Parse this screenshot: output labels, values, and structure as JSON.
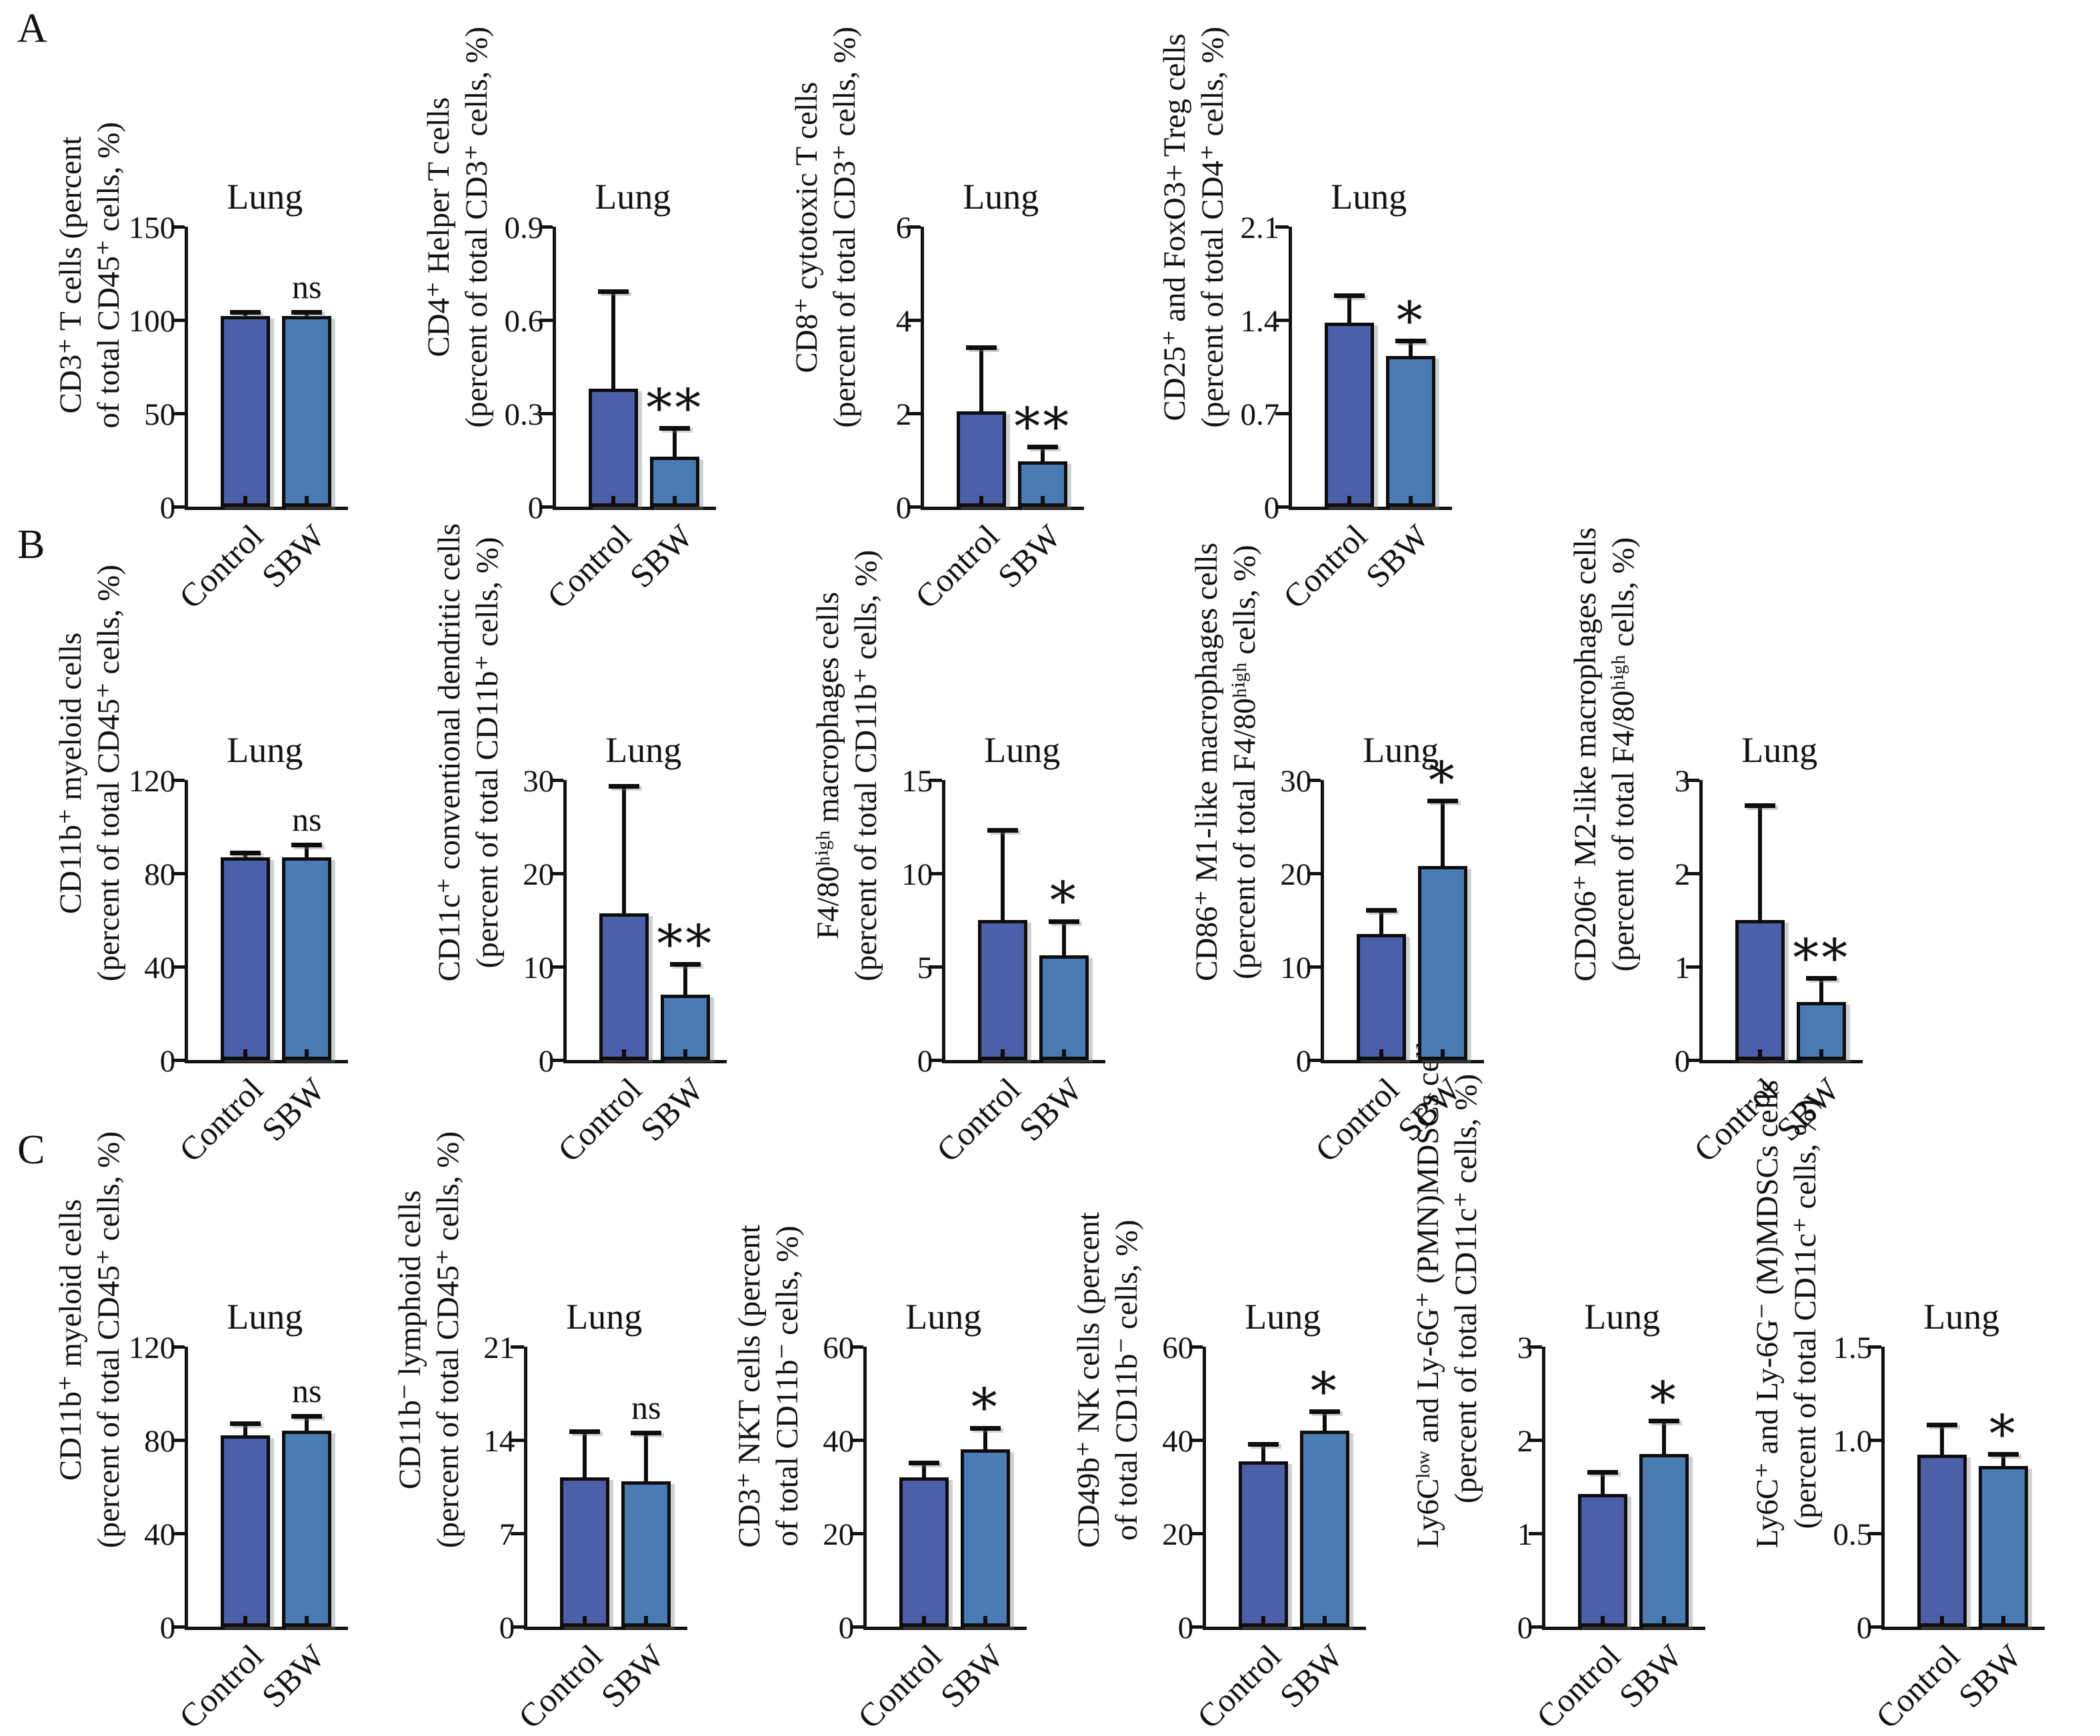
{
  "figure_background": "#ffffff",
  "colors": {
    "control_bar": "#4C5FA8",
    "sbw_bar": "#4A7BB2",
    "axis": "#111111"
  },
  "panels": [
    {
      "label": "A"
    },
    {
      "label": "B"
    },
    {
      "label": "C"
    }
  ],
  "chart_data": [
    {
      "panel": "A",
      "type": "bar",
      "title": "Lung",
      "ylabel_line1": "CD3⁺ T cells (percent",
      "ylabel_line2": "of total CD45⁺ cells, %)",
      "ymax": 150,
      "yticks": [
        0,
        50,
        100,
        150
      ],
      "ytick_labels": [
        "0",
        "50",
        "100",
        "150"
      ],
      "categories": [
        "Control",
        "SBW"
      ],
      "series": [
        {
          "name": "Control",
          "value": 102,
          "error": 2
        },
        {
          "name": "SBW",
          "value": 102,
          "error": 2
        }
      ],
      "significance": "ns",
      "significance_on": "SBW"
    },
    {
      "panel": "A",
      "type": "bar",
      "title": "Lung",
      "ylabel_line1": "CD4⁺ Helper T cells",
      "ylabel_line2": "(percent of total CD3⁺ cells, %)",
      "ymax": 0.9,
      "yticks": [
        0,
        0.3,
        0.6,
        0.9
      ],
      "ytick_labels": [
        "0",
        "0.3",
        "0.6",
        "0.9"
      ],
      "categories": [
        "Control",
        "SBW"
      ],
      "series": [
        {
          "name": "Control",
          "value": 0.38,
          "error": 0.31
        },
        {
          "name": "SBW",
          "value": 0.16,
          "error": 0.09
        }
      ],
      "significance": "**",
      "significance_on": "SBW"
    },
    {
      "panel": "A",
      "type": "bar",
      "title": "Lung",
      "ylabel_line1": "CD8⁺ cytotoxic T cells",
      "ylabel_line2": "(percent of total CD3⁺ cells, %)",
      "ymax": 6,
      "yticks": [
        0,
        2,
        4,
        6
      ],
      "ytick_labels": [
        "0",
        "2",
        "4",
        "6"
      ],
      "categories": [
        "Control",
        "SBW"
      ],
      "series": [
        {
          "name": "Control",
          "value": 2.05,
          "error": 1.35
        },
        {
          "name": "SBW",
          "value": 0.97,
          "error": 0.3
        }
      ],
      "significance": "**",
      "significance_on": "SBW"
    },
    {
      "panel": "A",
      "type": "bar",
      "title": "Lung",
      "ylabel_line1": "CD25⁺ and FoxO3+ Treg cells",
      "ylabel_line2": "(percent of total CD4⁺ cells, %)",
      "ymax": 2.1,
      "yticks": [
        0,
        0.7,
        1.4,
        2.1
      ],
      "ytick_labels": [
        "0",
        "0.7",
        "1.4",
        "2.1"
      ],
      "categories": [
        "Control",
        "SBW"
      ],
      "series": [
        {
          "name": "Control",
          "value": 1.38,
          "error": 0.2
        },
        {
          "name": "SBW",
          "value": 1.13,
          "error": 0.11
        }
      ],
      "significance": "*",
      "significance_on": "SBW"
    },
    {
      "panel": "B",
      "type": "bar",
      "title": "Lung",
      "ylabel_line1": "CD11b⁺ myeloid cells",
      "ylabel_line2": "(percent of total CD45⁺ cells, %)",
      "ymax": 120,
      "yticks": [
        0,
        40,
        80,
        120
      ],
      "ytick_labels": [
        "0",
        "40",
        "80",
        "120"
      ],
      "categories": [
        "Control",
        "SBW"
      ],
      "series": [
        {
          "name": "Control",
          "value": 87,
          "error": 1.5
        },
        {
          "name": "SBW",
          "value": 87,
          "error": 5
        }
      ],
      "significance": "ns",
      "significance_on": "SBW"
    },
    {
      "panel": "B",
      "type": "bar",
      "title": "Lung",
      "ylabel_line1": "CD11c⁺ conventional dendritic cells",
      "ylabel_line2": "(percent of total CD11b⁺ cells, %)",
      "ymax": 30,
      "yticks": [
        0,
        10,
        20,
        30
      ],
      "ytick_labels": [
        "0",
        "10",
        "20",
        "30"
      ],
      "categories": [
        "Control",
        "SBW"
      ],
      "series": [
        {
          "name": "Control",
          "value": 15.7,
          "error": 13.6
        },
        {
          "name": "SBW",
          "value": 7.0,
          "error": 3.2
        }
      ],
      "significance": "**",
      "significance_on": "SBW"
    },
    {
      "panel": "B",
      "type": "bar",
      "title": "Lung",
      "ylabel_line1": "F4/80ʰⁱᵍʰ macrophages cells",
      "ylabel_line2": "(percent of total CD11b⁺ cells, %)",
      "ymax": 15,
      "yticks": [
        0,
        5,
        10,
        15
      ],
      "ytick_labels": [
        "0",
        "5",
        "10",
        "15"
      ],
      "categories": [
        "Control",
        "SBW"
      ],
      "series": [
        {
          "name": "Control",
          "value": 7.5,
          "error": 4.8
        },
        {
          "name": "SBW",
          "value": 5.6,
          "error": 1.8
        }
      ],
      "significance": "*",
      "significance_on": "SBW"
    },
    {
      "panel": "B",
      "type": "bar",
      "title": "Lung",
      "ylabel_line1": "CD86⁺ M1-like macrophages cells",
      "ylabel_line2": "(percent of total F4/80ʰⁱᵍʰ cells, %)",
      "ymax": 30,
      "yticks": [
        0,
        10,
        20,
        30
      ],
      "ytick_labels": [
        "0",
        "10",
        "20",
        "30"
      ],
      "categories": [
        "Control",
        "SBW"
      ],
      "series": [
        {
          "name": "Control",
          "value": 13.5,
          "error": 2.5
        },
        {
          "name": "SBW",
          "value": 20.8,
          "error": 6.9
        }
      ],
      "significance": "*",
      "significance_on": "SBW"
    },
    {
      "panel": "B",
      "type": "bar",
      "title": "Lung",
      "ylabel_line1": "CD206⁺ M2-like macrophages cells",
      "ylabel_line2": "(percent of total F4/80ʰⁱᵍʰ cells, %)",
      "ymax": 3,
      "yticks": [
        0,
        1,
        2,
        3
      ],
      "ytick_labels": [
        "0",
        "1",
        "2",
        "3"
      ],
      "categories": [
        "Control",
        "SBW"
      ],
      "series": [
        {
          "name": "Control",
          "value": 1.5,
          "error": 1.22
        },
        {
          "name": "SBW",
          "value": 0.62,
          "error": 0.25
        }
      ],
      "significance": "**",
      "significance_on": "SBW"
    },
    {
      "panel": "C",
      "type": "bar",
      "title": "Lung",
      "ylabel_line1": "CD11b⁺ myeloid cells",
      "ylabel_line2": "(percent of total CD45⁺ cells, %)",
      "ymax": 120,
      "yticks": [
        0,
        40,
        80,
        120
      ],
      "ytick_labels": [
        "0",
        "40",
        "80",
        "120"
      ],
      "categories": [
        "Control",
        "SBW"
      ],
      "series": [
        {
          "name": "Control",
          "value": 82,
          "error": 5
        },
        {
          "name": "SBW",
          "value": 84,
          "error": 6
        }
      ],
      "significance": "ns",
      "significance_on": "SBW"
    },
    {
      "panel": "C",
      "type": "bar",
      "title": "Lung",
      "ylabel_line1": "CD11b⁻ lymphoid cells",
      "ylabel_line2": "(percent of total CD45⁺ cells, %)",
      "ymax": 21,
      "yticks": [
        0,
        7,
        14,
        21
      ],
      "ytick_labels": [
        "0",
        "7",
        "14",
        "21"
      ],
      "categories": [
        "Control",
        "SBW"
      ],
      "series": [
        {
          "name": "Control",
          "value": 11.2,
          "error": 3.4
        },
        {
          "name": "SBW",
          "value": 10.9,
          "error": 3.6
        }
      ],
      "significance": "ns",
      "significance_on": "SBW"
    },
    {
      "panel": "C",
      "type": "bar",
      "title": "Lung",
      "ylabel_line1": "CD3⁺ NKT cells (percent",
      "ylabel_line2": "of total CD11b⁻ cells, %)",
      "ymax": 60,
      "yticks": [
        0,
        20,
        40,
        60
      ],
      "ytick_labels": [
        "0",
        "20",
        "40",
        "60"
      ],
      "categories": [
        "Control",
        "SBW"
      ],
      "series": [
        {
          "name": "Control",
          "value": 32,
          "error": 3
        },
        {
          "name": "SBW",
          "value": 38,
          "error": 4.5
        }
      ],
      "significance": "*",
      "significance_on": "SBW"
    },
    {
      "panel": "C",
      "type": "bar",
      "title": "Lung",
      "ylabel_line1": "CD49b⁺ NK cells (percent",
      "ylabel_line2": "of total CD11b⁻ cells, %)",
      "ymax": 60,
      "yticks": [
        0,
        20,
        40,
        60
      ],
      "ytick_labels": [
        "0",
        "20",
        "40",
        "60"
      ],
      "categories": [
        "Control",
        "SBW"
      ],
      "series": [
        {
          "name": "Control",
          "value": 35.5,
          "error": 3.5
        },
        {
          "name": "SBW",
          "value": 42,
          "error": 4
        }
      ],
      "significance": "*",
      "significance_on": "SBW"
    },
    {
      "panel": "C",
      "type": "bar",
      "title": "Lung",
      "ylabel_line1": "Ly6Cˡᵒʷ and Ly-6G⁺ (PMN)MDSCs cells",
      "ylabel_line2": "(percent of total CD11c⁺ cells, %)",
      "ymax": 3,
      "yticks": [
        0,
        1,
        2,
        3
      ],
      "ytick_labels": [
        "0",
        "1",
        "2",
        "3"
      ],
      "categories": [
        "Control",
        "SBW"
      ],
      "series": [
        {
          "name": "Control",
          "value": 1.42,
          "error": 0.23
        },
        {
          "name": "SBW",
          "value": 1.85,
          "error": 0.35
        }
      ],
      "significance": "*",
      "significance_on": "SBW"
    },
    {
      "panel": "C",
      "type": "bar",
      "title": "Lung",
      "ylabel_line1": "Ly6C⁺ and Ly-6G⁻ (M)MDSCs cells",
      "ylabel_line2": "(percent of total CD11c⁺ cells, %)",
      "ymax": 1.5,
      "yticks": [
        0,
        0.5,
        1.0,
        1.5
      ],
      "ytick_labels": [
        "0",
        "0.5",
        "1.0",
        "1.5"
      ],
      "categories": [
        "Control",
        "SBW"
      ],
      "series": [
        {
          "name": "Control",
          "value": 0.92,
          "error": 0.16
        },
        {
          "name": "SBW",
          "value": 0.86,
          "error": 0.06
        }
      ],
      "significance": "*",
      "significance_on": "SBW"
    }
  ]
}
